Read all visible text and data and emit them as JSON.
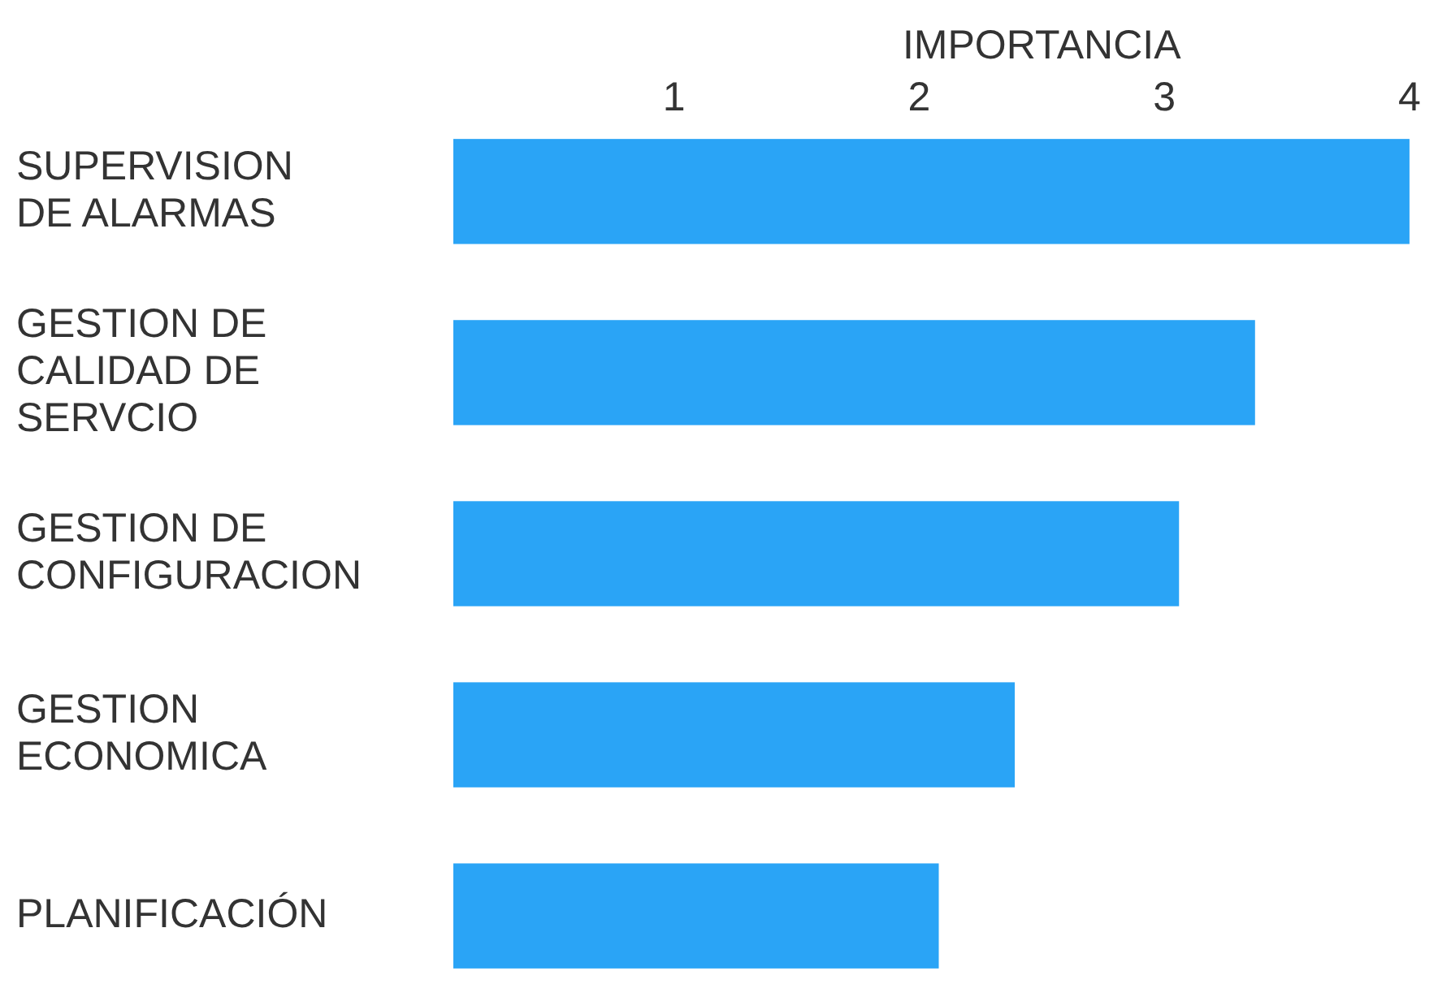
{
  "chart_data": {
    "type": "bar",
    "orientation": "horizontal",
    "xlabel": "IMPORTANCIA",
    "categories": [
      "SUPERVISION DE ALARMAS",
      "GESTION DE CALIDAD DE SERVCIO",
      "GESTION DE CONFIGURACION",
      "GESTION ECONOMICA",
      "PLANIFICACIÓN"
    ],
    "values": [
      4.0,
      3.37,
      3.06,
      2.39,
      2.08
    ],
    "color": "#2aa4f6",
    "xlim": [
      0.1,
      4.05
    ],
    "xticks": [
      1,
      2,
      3,
      4
    ],
    "grid": false
  }
}
